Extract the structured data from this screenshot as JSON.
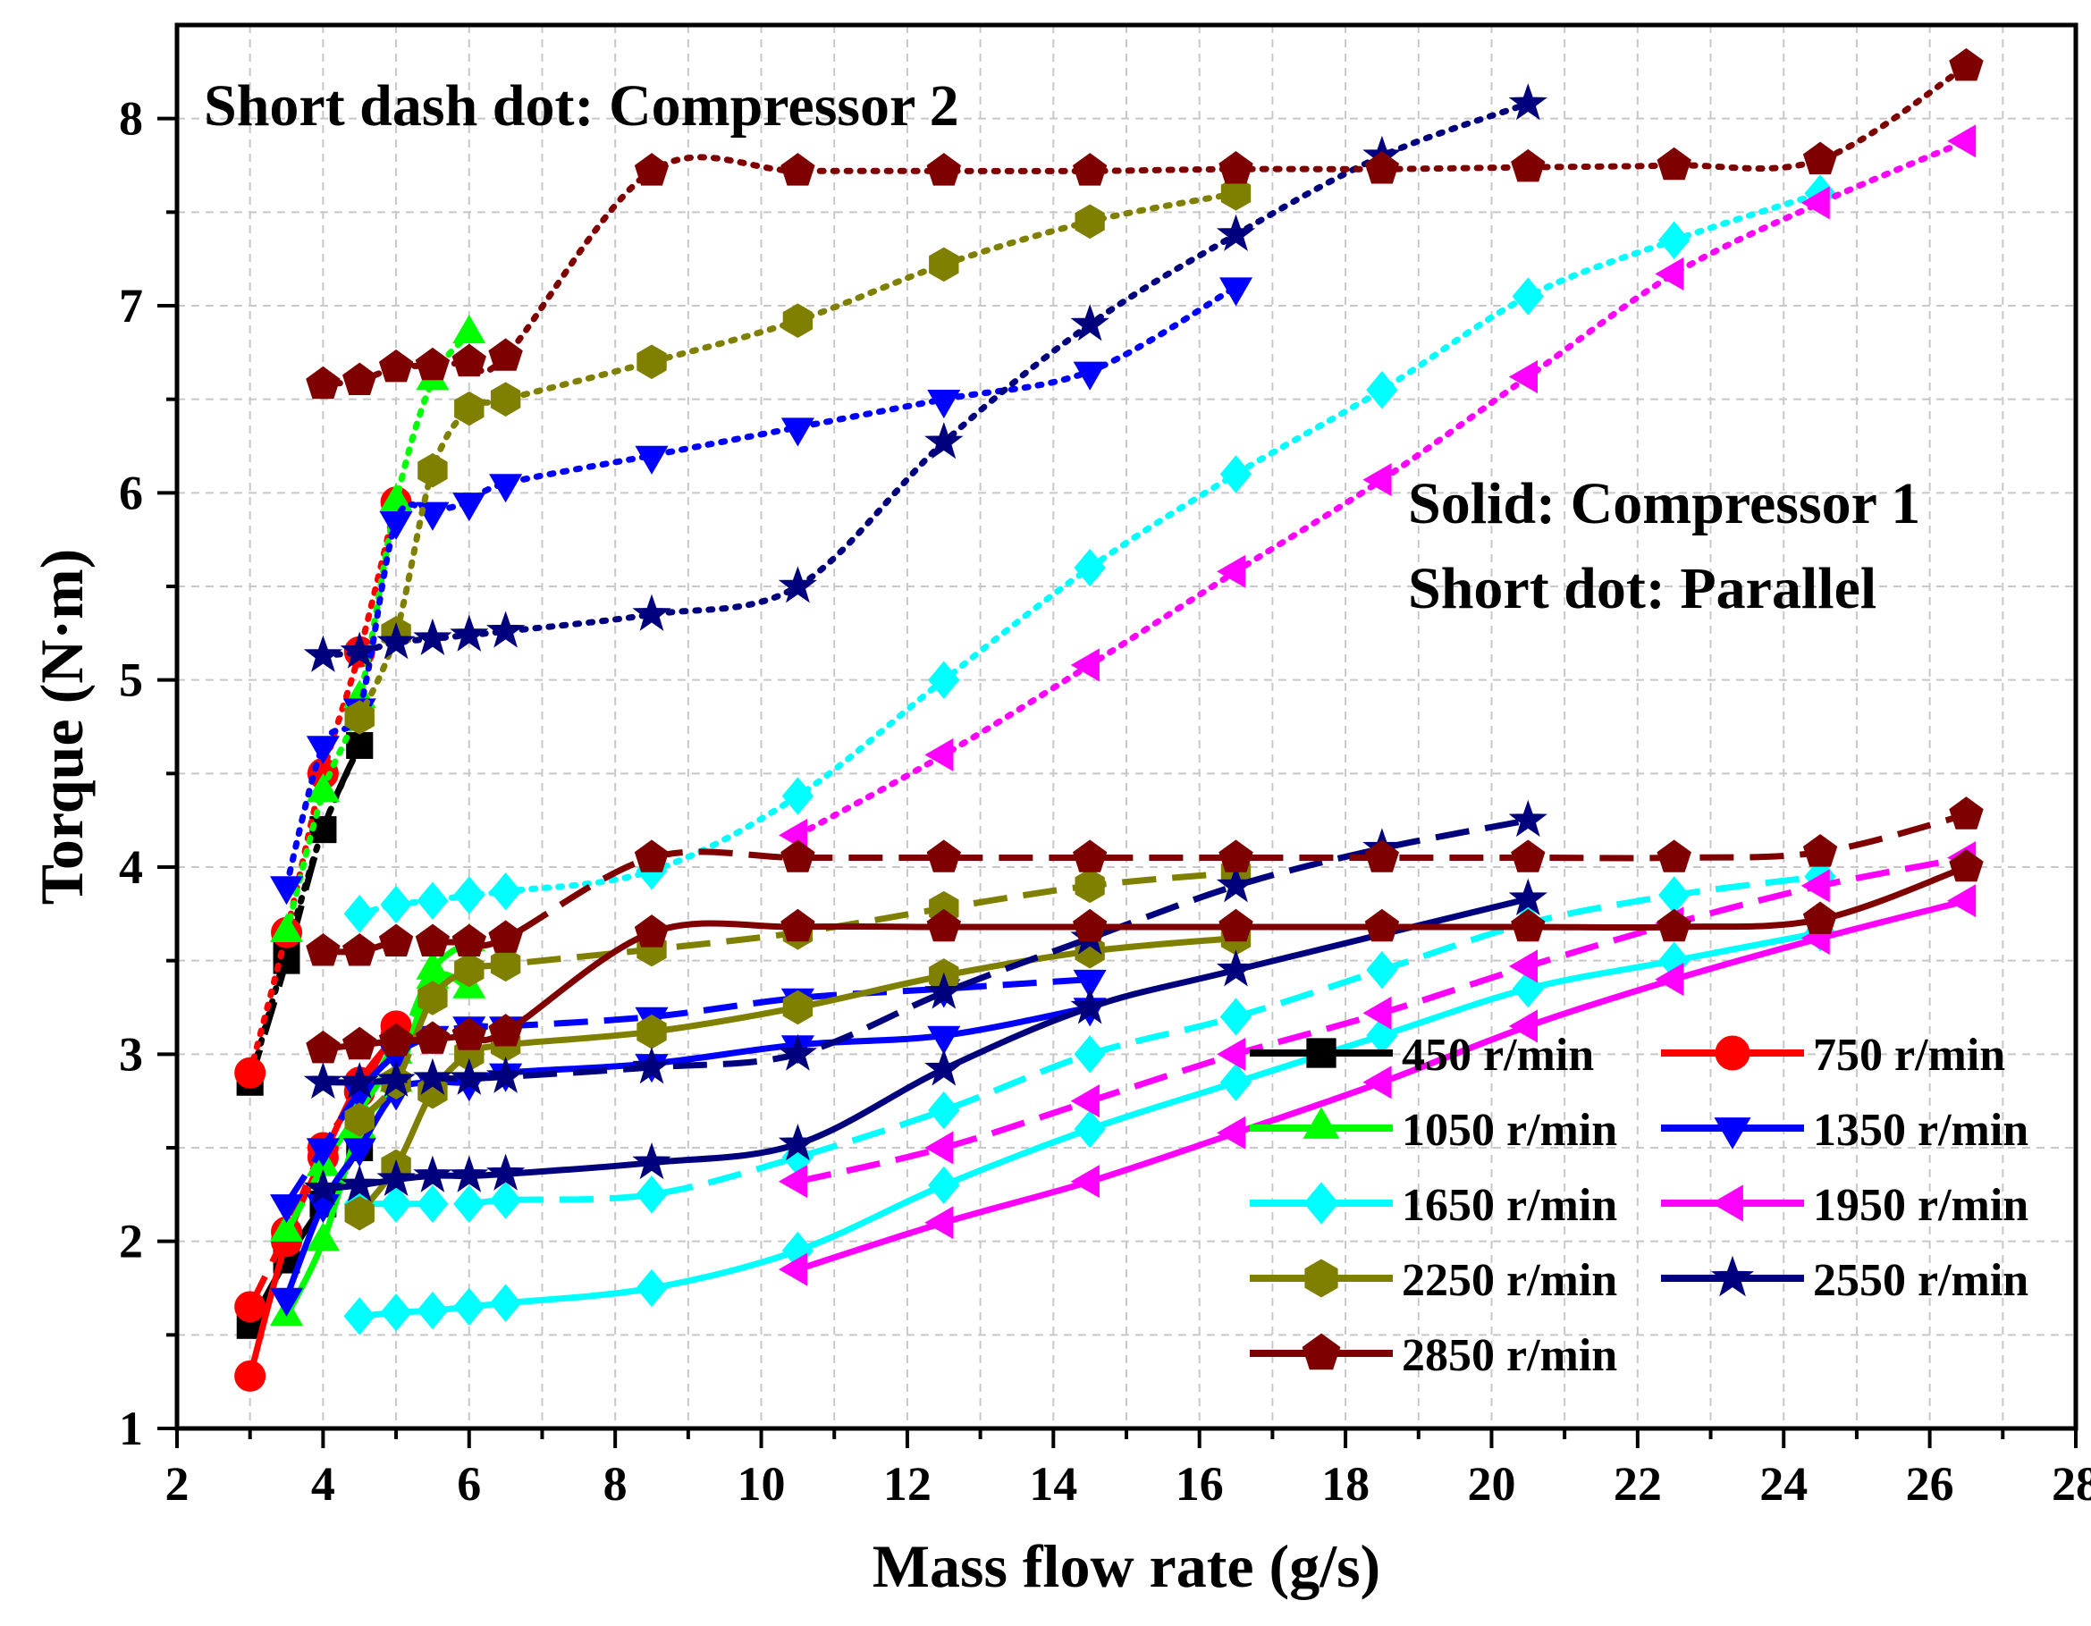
{
  "chart_data": {
    "type": "line",
    "title": "",
    "xlabel": "Mass flow rate (g/s)",
    "ylabel": "Torque (N·m)",
    "xlim": [
      2,
      28
    ],
    "ylim": [
      1,
      8.5
    ],
    "x_ticks": [
      2,
      4,
      6,
      8,
      10,
      12,
      14,
      16,
      18,
      20,
      22,
      24,
      26,
      28
    ],
    "x_tick_labels": [
      "2",
      "4",
      "6",
      "8",
      "10",
      "12",
      "14",
      "16",
      "18",
      "20",
      "22",
      "24",
      "26",
      "28"
    ],
    "y_ticks": [
      1,
      2,
      3,
      4,
      5,
      6,
      7,
      8
    ],
    "y_tick_labels": [
      "1",
      "2",
      "3",
      "4",
      "5",
      "6",
      "7",
      "8"
    ],
    "grid": true,
    "annotations": [
      "Short dash dot: Compressor 2",
      "Solid: Compressor 1",
      "Short dot: Parallel"
    ],
    "legend": {
      "location": "bottom-right",
      "entries": [
        "450 r/min",
        "750 r/min",
        "1050 r/min",
        "1350 r/min",
        "1650 r/min",
        "1950 r/min",
        "2250 r/min",
        "2550 r/min",
        "2850 r/min"
      ]
    },
    "series": [
      {
        "name": "450 r/min",
        "color": "#000000",
        "marker": "square",
        "compressor1": [
          [
            3.0,
            1.55
          ],
          [
            3.5,
            1.9
          ],
          [
            4.0,
            2.2
          ],
          [
            4.5,
            2.5
          ]
        ],
        "compressor2": [
          [
            3.0,
            2.85
          ],
          [
            3.5,
            3.5
          ],
          [
            4.0,
            4.2
          ],
          [
            4.5,
            4.65
          ]
        ],
        "parallel": [
          [
            3.0,
            2.85
          ],
          [
            3.5,
            3.55
          ],
          [
            4.0,
            4.2
          ],
          [
            4.5,
            4.65
          ]
        ]
      },
      {
        "name": "750 r/min",
        "color": "#ff0000",
        "marker": "circle",
        "compressor1": [
          [
            3.0,
            1.28
          ],
          [
            3.5,
            2.0
          ],
          [
            4.0,
            2.45
          ],
          [
            4.5,
            2.85
          ],
          [
            5.0,
            3.1
          ]
        ],
        "compressor2": [
          [
            3.0,
            1.65
          ],
          [
            3.5,
            2.05
          ],
          [
            4.0,
            2.5
          ],
          [
            4.5,
            2.8
          ],
          [
            5.0,
            3.15
          ]
        ],
        "parallel": [
          [
            3.0,
            2.9
          ],
          [
            3.5,
            3.65
          ],
          [
            4.0,
            4.5
          ],
          [
            4.5,
            5.15
          ],
          [
            5.0,
            5.95
          ]
        ]
      },
      {
        "name": "1050 r/min",
        "color": "#00ff00",
        "marker": "triangle-up",
        "compressor1": [
          [
            3.5,
            1.6
          ],
          [
            4.0,
            2.0
          ],
          [
            4.5,
            2.6
          ],
          [
            5.0,
            2.85
          ],
          [
            5.5,
            3.4
          ],
          [
            6.0,
            3.35
          ]
        ],
        "compressor2": [
          [
            3.5,
            2.05
          ],
          [
            4.0,
            2.4
          ],
          [
            4.5,
            2.7
          ],
          [
            5.0,
            3.0
          ],
          [
            5.5,
            3.45
          ],
          [
            6.0,
            3.6
          ]
        ],
        "parallel": [
          [
            3.5,
            3.65
          ],
          [
            4.0,
            4.4
          ],
          [
            4.5,
            4.9
          ],
          [
            5.0,
            5.95
          ],
          [
            5.5,
            6.6
          ],
          [
            6.0,
            6.85
          ]
        ]
      },
      {
        "name": "1350 r/min",
        "color": "#0000ff",
        "marker": "triangle-down",
        "compressor1": [
          [
            3.5,
            1.7
          ],
          [
            4.0,
            2.2
          ],
          [
            4.5,
            2.5
          ],
          [
            5.0,
            2.8
          ],
          [
            5.5,
            2.85
          ],
          [
            6.0,
            2.85
          ],
          [
            6.5,
            2.9
          ],
          [
            8.5,
            2.95
          ],
          [
            10.5,
            3.05
          ],
          [
            12.5,
            3.1
          ],
          [
            14.5,
            3.25
          ]
        ],
        "compressor2": [
          [
            3.5,
            2.2
          ],
          [
            4.0,
            2.5
          ],
          [
            4.5,
            2.8
          ],
          [
            5.0,
            3.0
          ],
          [
            5.5,
            3.1
          ],
          [
            6.0,
            3.15
          ],
          [
            6.5,
            3.15
          ],
          [
            8.5,
            3.2
          ],
          [
            10.5,
            3.3
          ],
          [
            12.5,
            3.35
          ],
          [
            14.5,
            3.4
          ]
        ],
        "parallel": [
          [
            3.5,
            3.9
          ],
          [
            4.0,
            4.65
          ],
          [
            4.5,
            4.85
          ],
          [
            5.0,
            5.85
          ],
          [
            5.5,
            5.9
          ],
          [
            6.0,
            5.95
          ],
          [
            6.5,
            6.05
          ],
          [
            8.5,
            6.2
          ],
          [
            10.5,
            6.35
          ],
          [
            12.5,
            6.5
          ],
          [
            14.5,
            6.65
          ],
          [
            16.5,
            7.1
          ]
        ]
      },
      {
        "name": "1650 r/min",
        "color": "#00ffff",
        "marker": "diamond",
        "compressor1": [
          [
            4.5,
            1.6
          ],
          [
            5.0,
            1.62
          ],
          [
            5.5,
            1.63
          ],
          [
            6.0,
            1.65
          ],
          [
            6.5,
            1.67
          ],
          [
            8.5,
            1.75
          ],
          [
            10.5,
            1.95
          ],
          [
            12.5,
            2.3
          ],
          [
            14.5,
            2.6
          ],
          [
            16.5,
            2.85
          ],
          [
            18.5,
            3.1
          ],
          [
            20.5,
            3.35
          ],
          [
            22.5,
            3.5
          ],
          [
            24.5,
            3.65
          ]
        ],
        "compressor2": [
          [
            4.5,
            2.2
          ],
          [
            5.0,
            2.2
          ],
          [
            5.5,
            2.2
          ],
          [
            6.0,
            2.2
          ],
          [
            6.5,
            2.22
          ],
          [
            8.5,
            2.25
          ],
          [
            10.5,
            2.45
          ],
          [
            12.5,
            2.7
          ],
          [
            14.5,
            3.0
          ],
          [
            16.5,
            3.2
          ],
          [
            18.5,
            3.45
          ],
          [
            20.5,
            3.7
          ],
          [
            22.5,
            3.85
          ],
          [
            24.5,
            3.95
          ]
        ],
        "parallel": [
          [
            4.5,
            3.75
          ],
          [
            5.0,
            3.8
          ],
          [
            5.5,
            3.82
          ],
          [
            6.0,
            3.85
          ],
          [
            6.5,
            3.87
          ],
          [
            8.5,
            3.98
          ],
          [
            10.5,
            4.38
          ],
          [
            12.5,
            5.0
          ],
          [
            14.5,
            5.6
          ],
          [
            16.5,
            6.1
          ],
          [
            18.5,
            6.55
          ],
          [
            20.5,
            7.05
          ],
          [
            22.5,
            7.35
          ],
          [
            24.5,
            7.6
          ]
        ]
      },
      {
        "name": "1950 r/min",
        "color": "#ff00ff",
        "marker": "triangle-left",
        "compressor1": [
          [
            10.5,
            1.85
          ],
          [
            12.5,
            2.1
          ],
          [
            14.5,
            2.32
          ],
          [
            16.5,
            2.58
          ],
          [
            18.5,
            2.85
          ],
          [
            20.5,
            3.15
          ],
          [
            22.5,
            3.4
          ],
          [
            24.5,
            3.62
          ],
          [
            26.5,
            3.82
          ]
        ],
        "compressor2": [
          [
            10.5,
            2.32
          ],
          [
            12.5,
            2.5
          ],
          [
            14.5,
            2.75
          ],
          [
            16.5,
            3.0
          ],
          [
            18.5,
            3.22
          ],
          [
            20.5,
            3.47
          ],
          [
            22.5,
            3.7
          ],
          [
            24.5,
            3.9
          ],
          [
            26.5,
            4.05
          ]
        ],
        "parallel": [
          [
            10.5,
            4.17
          ],
          [
            12.5,
            4.6
          ],
          [
            14.5,
            5.08
          ],
          [
            16.5,
            5.58
          ],
          [
            18.5,
            6.07
          ],
          [
            20.5,
            6.62
          ],
          [
            22.5,
            7.17
          ],
          [
            24.5,
            7.55
          ],
          [
            26.5,
            7.88
          ]
        ]
      },
      {
        "name": "2250 r/min",
        "color": "#808000",
        "marker": "hexagon",
        "compressor1": [
          [
            4.5,
            2.15
          ],
          [
            5.0,
            2.4
          ],
          [
            5.5,
            2.8
          ],
          [
            6.0,
            3.0
          ],
          [
            6.5,
            3.05
          ],
          [
            8.5,
            3.12
          ],
          [
            10.5,
            3.25
          ],
          [
            12.5,
            3.42
          ],
          [
            14.5,
            3.55
          ],
          [
            16.5,
            3.62
          ]
        ],
        "compressor2": [
          [
            4.5,
            2.65
          ],
          [
            5.0,
            2.85
          ],
          [
            5.5,
            3.3
          ],
          [
            6.0,
            3.45
          ],
          [
            6.5,
            3.48
          ],
          [
            8.5,
            3.56
          ],
          [
            10.5,
            3.65
          ],
          [
            12.5,
            3.78
          ],
          [
            14.5,
            3.9
          ],
          [
            16.5,
            3.97
          ]
        ],
        "parallel": [
          [
            4.5,
            4.8
          ],
          [
            5.0,
            5.25
          ],
          [
            5.5,
            6.12
          ],
          [
            6.0,
            6.45
          ],
          [
            6.5,
            6.5
          ],
          [
            8.5,
            6.7
          ],
          [
            10.5,
            6.92
          ],
          [
            12.5,
            7.22
          ],
          [
            14.5,
            7.45
          ],
          [
            16.5,
            7.6
          ]
        ]
      },
      {
        "name": "2550 r/min",
        "color": "#00007f",
        "marker": "star",
        "compressor1": [
          [
            4.0,
            2.28
          ],
          [
            4.5,
            2.3
          ],
          [
            5.0,
            2.33
          ],
          [
            5.5,
            2.35
          ],
          [
            6.0,
            2.35
          ],
          [
            6.5,
            2.36
          ],
          [
            8.5,
            2.42
          ],
          [
            10.5,
            2.52
          ],
          [
            12.5,
            2.92
          ],
          [
            14.5,
            3.25
          ],
          [
            16.5,
            3.45
          ],
          [
            20.5,
            3.83
          ]
        ],
        "compressor2": [
          [
            4.0,
            2.85
          ],
          [
            4.5,
            2.85
          ],
          [
            5.0,
            2.86
          ],
          [
            5.5,
            2.87
          ],
          [
            6.0,
            2.87
          ],
          [
            6.5,
            2.88
          ],
          [
            8.5,
            2.93
          ],
          [
            10.5,
            3.0
          ],
          [
            12.5,
            3.33
          ],
          [
            14.5,
            3.62
          ],
          [
            16.5,
            3.9
          ],
          [
            18.5,
            4.1
          ],
          [
            20.5,
            4.25
          ]
        ],
        "parallel": [
          [
            4.0,
            5.13
          ],
          [
            4.5,
            5.15
          ],
          [
            5.0,
            5.2
          ],
          [
            5.5,
            5.22
          ],
          [
            6.0,
            5.24
          ],
          [
            6.5,
            5.26
          ],
          [
            8.5,
            5.35
          ],
          [
            10.5,
            5.5
          ],
          [
            12.5,
            6.27
          ],
          [
            14.5,
            6.9
          ],
          [
            16.5,
            7.38
          ],
          [
            18.5,
            7.8
          ],
          [
            20.5,
            8.08
          ]
        ]
      },
      {
        "name": "2850 r/min",
        "color": "#7f0000",
        "marker": "pentagon",
        "compressor1": [
          [
            4.0,
            3.03
          ],
          [
            4.5,
            3.05
          ],
          [
            5.0,
            3.07
          ],
          [
            5.5,
            3.08
          ],
          [
            6.0,
            3.1
          ],
          [
            6.5,
            3.12
          ],
          [
            8.5,
            3.65
          ],
          [
            10.5,
            3.68
          ],
          [
            12.5,
            3.68
          ],
          [
            14.5,
            3.68
          ],
          [
            16.5,
            3.68
          ],
          [
            18.5,
            3.68
          ],
          [
            20.5,
            3.68
          ],
          [
            22.5,
            3.68
          ],
          [
            24.5,
            3.72
          ],
          [
            26.5,
            4.0
          ]
        ],
        "compressor2": [
          [
            4.0,
            3.55
          ],
          [
            4.5,
            3.55
          ],
          [
            5.0,
            3.6
          ],
          [
            5.5,
            3.6
          ],
          [
            6.0,
            3.6
          ],
          [
            6.5,
            3.62
          ],
          [
            8.5,
            4.05
          ],
          [
            10.5,
            4.05
          ],
          [
            12.5,
            4.05
          ],
          [
            14.5,
            4.05
          ],
          [
            16.5,
            4.05
          ],
          [
            18.5,
            4.05
          ],
          [
            20.5,
            4.05
          ],
          [
            22.5,
            4.05
          ],
          [
            24.5,
            4.08
          ],
          [
            26.5,
            4.28
          ]
        ],
        "parallel": [
          [
            4.0,
            6.58
          ],
          [
            4.5,
            6.6
          ],
          [
            5.0,
            6.67
          ],
          [
            5.5,
            6.68
          ],
          [
            6.0,
            6.7
          ],
          [
            6.5,
            6.73
          ],
          [
            8.5,
            7.72
          ],
          [
            10.5,
            7.72
          ],
          [
            12.5,
            7.72
          ],
          [
            14.5,
            7.72
          ],
          [
            16.5,
            7.73
          ],
          [
            18.5,
            7.73
          ],
          [
            20.5,
            7.74
          ],
          [
            22.5,
            7.75
          ],
          [
            24.5,
            7.78
          ],
          [
            26.5,
            8.28
          ]
        ]
      }
    ]
  }
}
